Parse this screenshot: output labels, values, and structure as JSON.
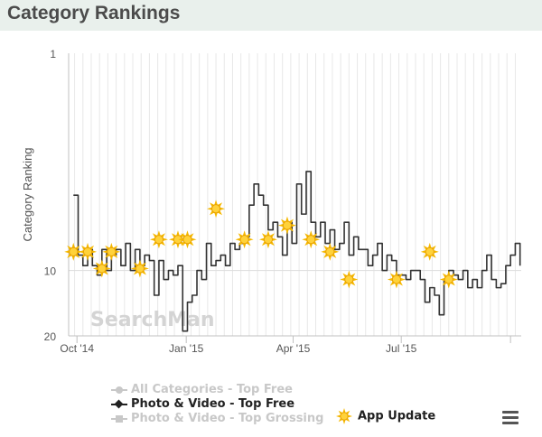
{
  "header": {
    "title": "Category Rankings"
  },
  "legend": {
    "items": [
      {
        "label": "All Categories - Top Free",
        "state": "hidden",
        "color": "#c8c8c8"
      },
      {
        "label": "Photo & Video - Top Free",
        "state": "visible",
        "color": "#222222"
      },
      {
        "label": "Photo & Video - Top Grossing",
        "state": "hidden",
        "color": "#c8c8c8"
      }
    ],
    "app_update_label": "App Update"
  },
  "watermark": "SearchMan",
  "menu_icon": "hamburger-menu-icon",
  "colors": {
    "line": "#333333",
    "update_marker": "#f5b800",
    "header_bg": "#e9f0ec",
    "title": "#4b4b4b"
  },
  "chart_data": {
    "type": "line",
    "title": "Category Rankings",
    "ylabel": "Category Ranking",
    "xlabel": "",
    "y_scale": "log",
    "y_reversed": true,
    "ylim": [
      1,
      20
    ],
    "y_ticks": [
      1,
      10,
      20
    ],
    "x_ticks": [
      "Oct '14",
      "Jan '15",
      "Apr '15",
      "Jul '15"
    ],
    "grid": "vertical",
    "series": [
      {
        "name": "Photo & Video - Top Free",
        "x": [
          "2014-09-28",
          "2014-10-02",
          "2014-10-06",
          "2014-10-10",
          "2014-10-14",
          "2014-10-18",
          "2014-10-22",
          "2014-10-26",
          "2014-10-30",
          "2014-11-03",
          "2014-11-07",
          "2014-11-11",
          "2014-11-15",
          "2014-11-19",
          "2014-11-23",
          "2014-11-27",
          "2014-12-01",
          "2014-12-05",
          "2014-12-09",
          "2014-12-13",
          "2014-12-17",
          "2014-12-21",
          "2014-12-25",
          "2014-12-29",
          "2015-01-02",
          "2015-01-06",
          "2015-01-10",
          "2015-01-14",
          "2015-01-18",
          "2015-01-22",
          "2015-01-26",
          "2015-01-30",
          "2015-02-03",
          "2015-02-07",
          "2015-02-11",
          "2015-02-15",
          "2015-02-19",
          "2015-02-23",
          "2015-02-27",
          "2015-03-03",
          "2015-03-07",
          "2015-03-11",
          "2015-03-15",
          "2015-03-19",
          "2015-03-23",
          "2015-03-27",
          "2015-03-31",
          "2015-04-04",
          "2015-04-08",
          "2015-04-12",
          "2015-04-16",
          "2015-04-20",
          "2015-04-24",
          "2015-04-28",
          "2015-05-02",
          "2015-05-06",
          "2015-05-10",
          "2015-05-14",
          "2015-05-18",
          "2015-05-22",
          "2015-05-26",
          "2015-05-30",
          "2015-06-03",
          "2015-06-07",
          "2015-06-11",
          "2015-06-15",
          "2015-06-19",
          "2015-06-23",
          "2015-06-27",
          "2015-07-01",
          "2015-07-05",
          "2015-07-09",
          "2015-07-13",
          "2015-07-17",
          "2015-07-21",
          "2015-07-25",
          "2015-07-29",
          "2015-08-02",
          "2015-08-06",
          "2015-08-10",
          "2015-08-14",
          "2015-08-18",
          "2015-08-22",
          "2015-08-26",
          "2015-08-30",
          "2015-09-03",
          "2015-09-07",
          "2015-09-11",
          "2015-09-15",
          "2015-09-19",
          "2015-09-23",
          "2015-09-27",
          "2015-10-01",
          "2015-10-05",
          "2015-10-09"
        ],
        "y": [
          4.5,
          8.5,
          9.5,
          8,
          9.5,
          10.5,
          8,
          10,
          8.5,
          8,
          9.5,
          7.5,
          10,
          8,
          9.5,
          8.5,
          9,
          13,
          9,
          11,
          10,
          10.5,
          9.5,
          19,
          14,
          13,
          10,
          11,
          7.5,
          9.5,
          9,
          8.5,
          9.5,
          7.5,
          8,
          7.5,
          7,
          5,
          4,
          4.5,
          5,
          6.5,
          6,
          7,
          8.5,
          6,
          7.5,
          4,
          5.5,
          3.5,
          6,
          7,
          6,
          7.5,
          6.5,
          8,
          7.5,
          6,
          8.5,
          7,
          8,
          8,
          9.5,
          8.5,
          7.5,
          10,
          8.5,
          9,
          10.5,
          10.5,
          11,
          10,
          10,
          11,
          14,
          12,
          13,
          16,
          11,
          10,
          10.5,
          11,
          10,
          12,
          11,
          12,
          10,
          8.5,
          11,
          12,
          11.5,
          9.5,
          8.5,
          7.5,
          9.5
        ]
      }
    ],
    "app_updates": [
      {
        "x": "2014-09-28",
        "y": 8.2
      },
      {
        "x": "2014-10-10",
        "y": 8.2
      },
      {
        "x": "2014-10-22",
        "y": 9.8
      },
      {
        "x": "2014-10-30",
        "y": 8.2
      },
      {
        "x": "2014-11-23",
        "y": 9.8
      },
      {
        "x": "2014-12-09",
        "y": 7.2
      },
      {
        "x": "2014-12-25",
        "y": 7.2
      },
      {
        "x": "2015-01-02",
        "y": 7.2
      },
      {
        "x": "2015-01-26",
        "y": 5.2
      },
      {
        "x": "2015-02-19",
        "y": 7.2
      },
      {
        "x": "2015-03-11",
        "y": 7.2
      },
      {
        "x": "2015-03-27",
        "y": 6.2
      },
      {
        "x": "2015-04-16",
        "y": 7.2
      },
      {
        "x": "2015-05-02",
        "y": 8.2
      },
      {
        "x": "2015-05-18",
        "y": 11.0
      },
      {
        "x": "2015-06-27",
        "y": 11.0
      },
      {
        "x": "2015-07-25",
        "y": 8.2
      },
      {
        "x": "2015-08-10",
        "y": 11.0
      }
    ]
  }
}
